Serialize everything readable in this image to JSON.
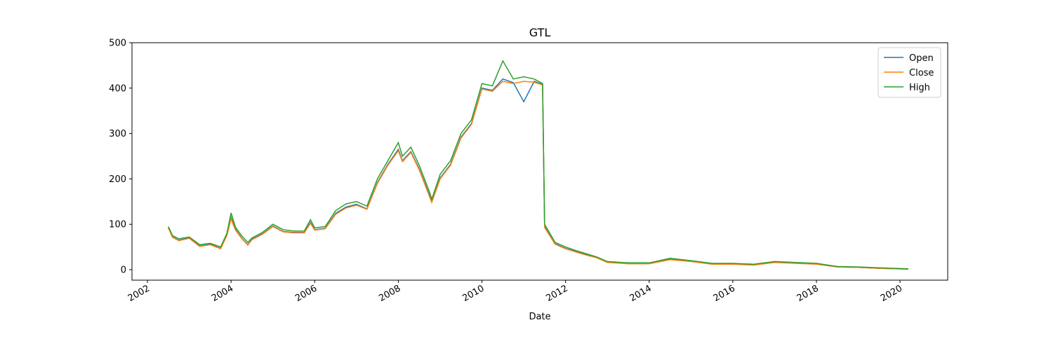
{
  "chart_data": {
    "type": "line",
    "title": "GTL",
    "xlabel": "Date",
    "x": [
      2002.5,
      2002.6,
      2002.75,
      2003.0,
      2003.25,
      2003.5,
      2003.75,
      2003.9,
      2004.0,
      2004.1,
      2004.25,
      2004.4,
      2004.5,
      2004.75,
      2005.0,
      2005.25,
      2005.5,
      2005.75,
      2005.9,
      2006.0,
      2006.25,
      2006.5,
      2006.75,
      2007.0,
      2007.25,
      2007.5,
      2007.75,
      2008.0,
      2008.1,
      2008.3,
      2008.5,
      2008.75,
      2008.8,
      2009.0,
      2009.25,
      2009.5,
      2009.75,
      2010.0,
      2010.25,
      2010.5,
      2010.75,
      2011.0,
      2011.25,
      2011.45,
      2011.5,
      2011.75,
      2012.0,
      2012.25,
      2012.5,
      2012.75,
      2013.0,
      2013.5,
      2014.0,
      2014.5,
      2015.0,
      2015.5,
      2016.0,
      2016.5,
      2017.0,
      2017.5,
      2018.0,
      2018.5,
      2019.0,
      2019.5,
      2020.2
    ],
    "series": [
      {
        "name": "Open",
        "color": "#1f77b4",
        "values": [
          93,
          72,
          65,
          70,
          52,
          56,
          47,
          76,
          115,
          90,
          70,
          55,
          67,
          79,
          96,
          84,
          82,
          82,
          104,
          88,
          91,
          124,
          138,
          144,
          134,
          192,
          232,
          265,
          240,
          260,
          222,
          163,
          150,
          202,
          232,
          292,
          322,
          400,
          395,
          420,
          412,
          370,
          415,
          408,
          95,
          57,
          47,
          40,
          33,
          27,
          17,
          14,
          14,
          23,
          19,
          13,
          13,
          11,
          17,
          15,
          13,
          6,
          5,
          3,
          1
        ]
      },
      {
        "name": "Close",
        "color": "#ff7f0e",
        "values": [
          92,
          71,
          64,
          69,
          51,
          55,
          46,
          75,
          112,
          88,
          69,
          54,
          66,
          78,
          95,
          83,
          81,
          81,
          102,
          87,
          90,
          122,
          136,
          142,
          133,
          190,
          230,
          262,
          238,
          258,
          220,
          160,
          148,
          200,
          230,
          290,
          320,
          398,
          393,
          415,
          410,
          415,
          413,
          407,
          93,
          56,
          46,
          39,
          32,
          26,
          16,
          13,
          13,
          22,
          18,
          12,
          12,
          10,
          16,
          14,
          12,
          6,
          5,
          3,
          1
        ]
      },
      {
        "name": "High",
        "color": "#2ca02c",
        "values": [
          95,
          75,
          68,
          72,
          55,
          58,
          50,
          80,
          125,
          95,
          75,
          60,
          70,
          82,
          100,
          88,
          85,
          85,
          110,
          92,
          95,
          130,
          145,
          150,
          140,
          200,
          240,
          280,
          250,
          270,
          230,
          170,
          155,
          210,
          240,
          300,
          330,
          410,
          405,
          460,
          420,
          425,
          420,
          410,
          100,
          60,
          50,
          42,
          35,
          28,
          18,
          15,
          15,
          25,
          20,
          14,
          14,
          12,
          18,
          16,
          14,
          7,
          6,
          4,
          2
        ]
      }
    ],
    "xlim": [
      2001.63,
      2021.14
    ],
    "xticks": [
      2002,
      2004,
      2006,
      2008,
      2010,
      2012,
      2014,
      2016,
      2018,
      2020
    ],
    "ylim": [
      -23.1,
      500
    ],
    "yticks": [
      0,
      100,
      200,
      300,
      400,
      500
    ],
    "legend": "upper right"
  }
}
